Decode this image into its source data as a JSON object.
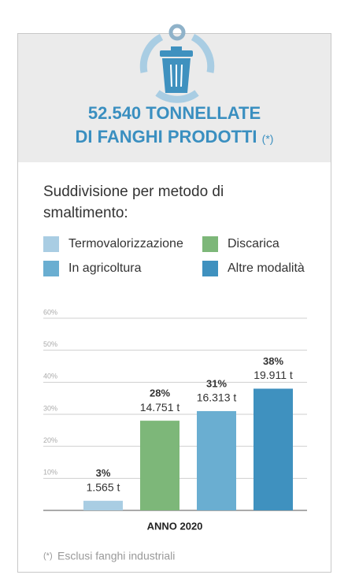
{
  "header": {
    "title_lines": [
      "52.540 TONNELLATE",
      "DI FANGHI PRODOTTI"
    ],
    "note_mark": "(*)"
  },
  "chart_data": {
    "type": "bar",
    "subtitle": "Suddivisione per metodo di smaltimento:",
    "categories": [
      "ANNO 2020"
    ],
    "series": [
      {
        "name": "Termovalorizzazione",
        "color": "#a9cde3",
        "values": [
          3
        ],
        "value_labels": [
          "3%"
        ],
        "tonnage": [
          1565
        ],
        "tonnage_labels": [
          "1.565 t"
        ]
      },
      {
        "name": "Discarica",
        "color": "#7db779",
        "values": [
          28
        ],
        "value_labels": [
          "28%"
        ],
        "tonnage": [
          14751
        ],
        "tonnage_labels": [
          "14.751 t"
        ]
      },
      {
        "name": "In agricoltura",
        "color": "#6aaed1",
        "values": [
          31
        ],
        "value_labels": [
          "31%"
        ],
        "tonnage": [
          16313
        ],
        "tonnage_labels": [
          "16.313 t"
        ]
      },
      {
        "name": "Altre modalità",
        "color": "#3f91bf",
        "values": [
          38
        ],
        "value_labels": [
          "38%"
        ],
        "tonnage": [
          19911
        ],
        "tonnage_labels": [
          "19.911 t"
        ]
      }
    ],
    "ylim": [
      0,
      60
    ],
    "yticks": [
      {
        "value": 10,
        "label": "10%"
      },
      {
        "value": 20,
        "label": "20%"
      },
      {
        "value": 30,
        "label": "30%"
      },
      {
        "value": 40,
        "label": "40%"
      },
      {
        "value": 50,
        "label": "50%"
      },
      {
        "value": 60,
        "label": "60%"
      }
    ],
    "grid": true
  },
  "footnote": {
    "mark": "(*)",
    "text": "Esclusi fanghi industriali"
  }
}
